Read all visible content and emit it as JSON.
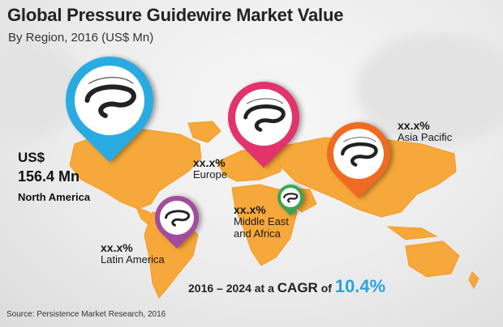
{
  "header": {
    "title": "Global Pressure Guidewire Market Value",
    "subtitle": "By Region, 2016 (US$ Mn)"
  },
  "regions": {
    "north_america": {
      "currency": "US$",
      "value": "156.4 Mn",
      "name": "North America",
      "color": "#29abe2"
    },
    "europe": {
      "percent": "xx.x%",
      "name": "Europe",
      "color": "#e2336b"
    },
    "asia_pacific": {
      "percent": "xx.x%",
      "name": "Asia Pacific",
      "color": "#ef6b22"
    },
    "middle_east_africa": {
      "percent": "xx.x%",
      "name": "Middle East and Africa",
      "name_line1": "Middle East",
      "name_line2": "and Africa",
      "color": "#3aa655"
    },
    "latin_america": {
      "percent": "xx.x%",
      "name": "Latin America",
      "color": "#a24c9f"
    }
  },
  "cagr": {
    "prefix": "2016 – 2024 at a",
    "label": "CAGR",
    "of": "of",
    "value": "10.4%",
    "value_color": "#2aa4dc"
  },
  "source": "Source: Persistence Market Research, 2016",
  "map_color": "#f7a83a",
  "icon": "guidewire-icon"
}
